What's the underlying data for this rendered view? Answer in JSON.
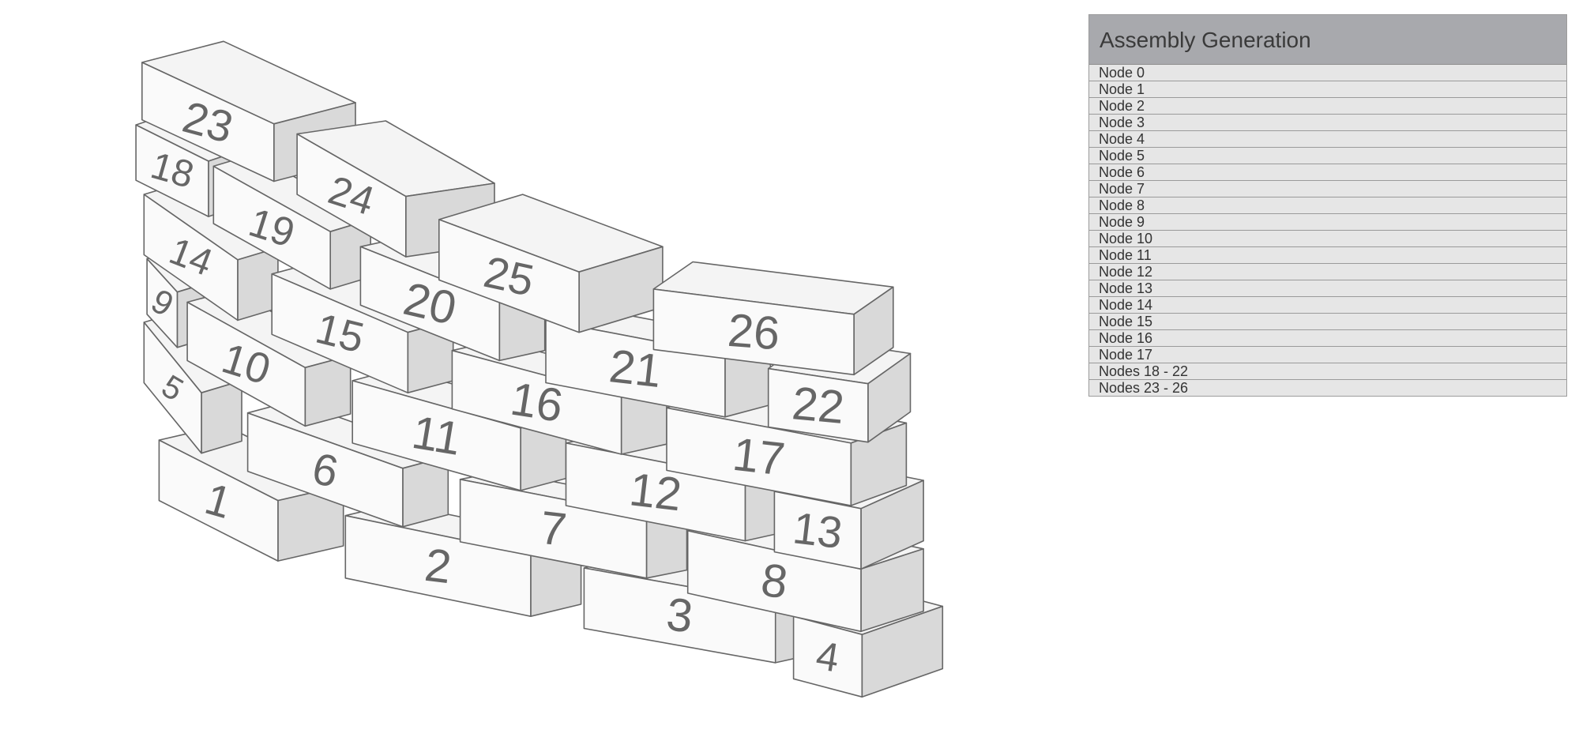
{
  "panel": {
    "title": "Assembly Generation",
    "items": [
      "Node 0",
      "Node 1",
      "Node 2",
      "Node 3",
      "Node 4",
      "Node 5",
      "Node 6",
      "Node 7",
      "Node 8",
      "Node 9",
      "Node 10",
      "Node 11",
      "Node 12",
      "Node 13",
      "Node 14",
      "Node 15",
      "Node 16",
      "Node 17",
      "Nodes 18 - 22",
      "Nodes 23 - 26"
    ]
  },
  "bricks": {
    "labels": [
      "1",
      "2",
      "3",
      "4",
      "5",
      "6",
      "7",
      "8",
      "9",
      "10",
      "11",
      "12",
      "13",
      "14",
      "15",
      "16",
      "17",
      "18",
      "19",
      "20",
      "21",
      "22",
      "23",
      "24",
      "25",
      "26"
    ]
  },
  "colors": {
    "face": "#fafafa",
    "side": "#d9d9d9",
    "top": "#f4f4f4",
    "edge": "#666666",
    "label": "#666666",
    "header": "#a8a9ad",
    "row": "#e6e6e6"
  }
}
